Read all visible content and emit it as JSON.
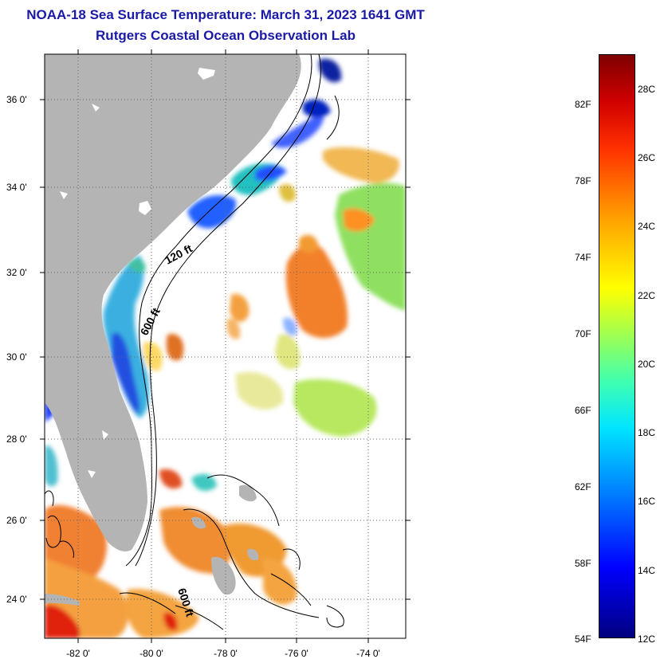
{
  "title": {
    "line1": "NOAA-18 Sea Surface Temperature:  March 31, 2023 1641 GMT",
    "line2": "Rutgers Coastal Ocean Observation Lab"
  },
  "map": {
    "lat_labels": [
      "36 0'",
      "34 0'",
      "32 0'",
      "30 0'",
      "28 0'",
      "26 0'",
      "24 0'"
    ],
    "lon_labels": [
      "-82 0'",
      "-80 0'",
      "-78 0'",
      "-76 0'",
      "-74 0'"
    ],
    "contour_labels": [
      "120 ft",
      "600 ft",
      "600 ft"
    ]
  },
  "colorbar": {
    "fahrenheit": [
      "82F",
      "78F",
      "74F",
      "70F",
      "66F",
      "62F",
      "58F",
      "54F"
    ],
    "celsius": [
      "28C",
      "26C",
      "24C",
      "22C",
      "20C",
      "18C",
      "16C",
      "14C",
      "12C"
    ]
  },
  "colors": {
    "title": "#1a1aa6",
    "land": "#b4b4b4",
    "ocean_nodata": "#ffffff",
    "grid": "#888888"
  }
}
